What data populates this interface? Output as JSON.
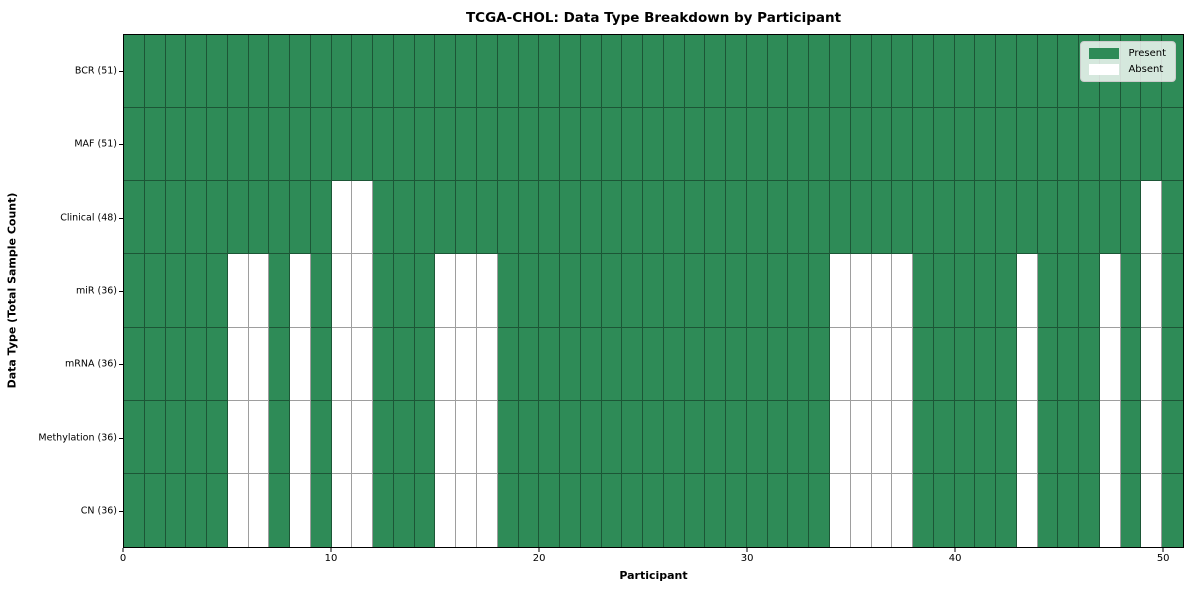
{
  "chart_data": {
    "type": "heatmap",
    "title": "TCGA-CHOL: Data Type Breakdown by Participant",
    "xlabel": "Participant",
    "ylabel": "Data Type (Total Sample Count)",
    "x_range": [
      0,
      51
    ],
    "n_cols": 51,
    "x_tick_values": [
      0,
      10,
      20,
      30,
      40,
      50
    ],
    "x_tick_labels": [
      "0",
      "10",
      "20",
      "30",
      "40",
      "50"
    ],
    "grid": true,
    "legend_position": "upper right",
    "legend": {
      "entries": [
        {
          "label": "Present",
          "color": "#2e8b57"
        },
        {
          "label": "Absent",
          "color": "#ffffff"
        }
      ]
    },
    "colors": {
      "present": "#2e8b57",
      "absent": "#ffffff",
      "gridline": "rgba(0,0,0,0.38)",
      "border": "#000000"
    },
    "rows": [
      {
        "label": "BCR (51)",
        "total": 51,
        "absent": []
      },
      {
        "label": "MAF (51)",
        "total": 51,
        "absent": []
      },
      {
        "label": "Clinical (48)",
        "total": 48,
        "absent": [
          10,
          11,
          49
        ]
      },
      {
        "label": "miR (36)",
        "total": 36,
        "absent": [
          5,
          6,
          8,
          10,
          11,
          15,
          16,
          17,
          34,
          35,
          36,
          37,
          43,
          47,
          49
        ]
      },
      {
        "label": "mRNA (36)",
        "total": 36,
        "absent": [
          5,
          6,
          8,
          10,
          11,
          15,
          16,
          17,
          34,
          35,
          36,
          37,
          43,
          47,
          49
        ]
      },
      {
        "label": "Methylation (36)",
        "total": 36,
        "absent": [
          5,
          6,
          8,
          10,
          11,
          15,
          16,
          17,
          34,
          35,
          36,
          37,
          43,
          47,
          49
        ]
      },
      {
        "label": "CN (36)",
        "total": 36,
        "absent": [
          5,
          6,
          8,
          10,
          11,
          15,
          16,
          17,
          34,
          35,
          36,
          37,
          43,
          47,
          49
        ]
      }
    ]
  }
}
